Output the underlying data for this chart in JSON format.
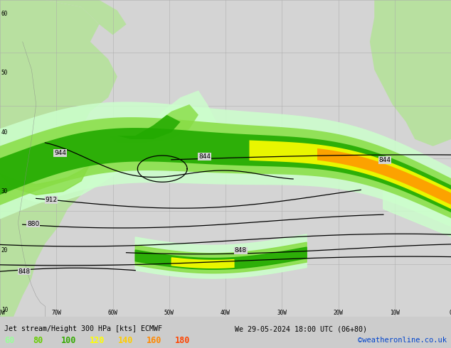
{
  "title_line1": "Jet stream/Height 300 HPa [kts] ECMWF",
  "title_line2": "We 29-05-2024 18:00 UTC (06+80)",
  "credit": "©weatheronline.co.uk",
  "legend_values": [
    "60",
    "80",
    "100",
    "120",
    "140",
    "160",
    "180"
  ],
  "legend_colors": [
    "#99ff99",
    "#66cc00",
    "#33aa00",
    "#ffff00",
    "#ffcc00",
    "#ff8800",
    "#ff4400"
  ],
  "bg_color": "#d4d4d4",
  "land_color": "#b8e0a0",
  "ocean_color": "#d4d4d4",
  "grid_color": "#aaaaaa",
  "coast_color": "#888888",
  "contour_color": "#000000",
  "title_color": "#000000",
  "credit_color": "#0044cc",
  "figwidth": 6.34,
  "figheight": 4.9,
  "dpi": 100
}
